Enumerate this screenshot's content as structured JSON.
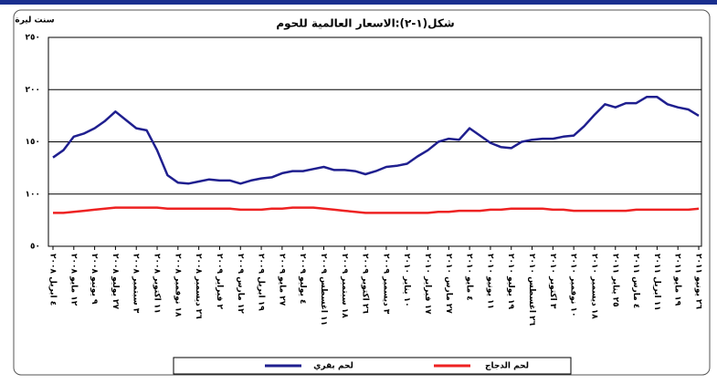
{
  "chart_data": {
    "type": "line",
    "title": "شكل(١-٢):الاسعار العالمية للحوم",
    "ylabel": "سنت ليرة",
    "categories": [
      "٤ ابريل ٢٠٠٨",
      null,
      "١٢ مايو ٢٠٠٨",
      null,
      "٩ يونيو ٢٠٠٨",
      null,
      "٢٧ يوليو ٢٠٠٨",
      null,
      "٣ سبتمبر ٢٠٠٨",
      null,
      "١١ اكتوبر ٢٠٠٨",
      null,
      "١٨ نوفمبر ٢٠٠٨",
      null,
      "٢٦ ديسمبر ٢٠٠٨",
      null,
      "٢ فبراير ٢٠٠٩",
      null,
      "١٢ مارس ٢٠٠٩",
      null,
      "١٩ ابريل ٢٠٠٩",
      null,
      "٢٧ مايو ٢٠٠٩",
      null,
      "٤ يوليو ٢٠٠٩",
      null,
      "١١ اغسطس ٢٠٠٩",
      null,
      "١٨ سبتمبر ٢٠٠٩",
      null,
      "٢٦ اكتوبر ٢٠٠٩",
      null,
      "٣ ديسمبر ٢٠٠٩",
      null,
      "١٠ يناير ٢٠١٠",
      null,
      "١٧ فبراير ٢٠١٠",
      null,
      "٢٧ مارس ٢٠١٠",
      null,
      "٤ مايو ٢٠١٠",
      null,
      "١١ يونيو ٢٠١٠",
      null,
      "١٩ يوليو ٢٠١٠",
      null,
      "٢٦ اغسطس ٢٠١٠",
      null,
      "٣ اكتوبر ٢٠١٠",
      null,
      "١٠ نوفمبر ٢٠١٠",
      null,
      "١٨ ديسمبر ٢٠١٠",
      null,
      "٢٥ يناير ٢٠١١",
      null,
      "٤ مارس ٢٠١١",
      null,
      "١١ ابريل ٢٠١١",
      null,
      "١٩ مايو ٢٠١١",
      null,
      "٢٦ يونيو ٢٠١١"
    ],
    "series": [
      {
        "name": "لحم بقري",
        "color": "#1f1f8f",
        "values": [
          135,
          142,
          155,
          158,
          163,
          170,
          179,
          171,
          163,
          161,
          142,
          118,
          111,
          110,
          112,
          114,
          113,
          113,
          110,
          113,
          115,
          116,
          120,
          122,
          122,
          124,
          126,
          123,
          123,
          122,
          119,
          122,
          126,
          127,
          129,
          136,
          142,
          150,
          153,
          152,
          163,
          156,
          149,
          145,
          144,
          150,
          152,
          153,
          153,
          155,
          156,
          165,
          176,
          186,
          183,
          187,
          187,
          193,
          193,
          186,
          183,
          181,
          175
        ]
      },
      {
        "name": "لحم الدجاج",
        "color": "#ee2222",
        "values": [
          82,
          82,
          83,
          84,
          85,
          86,
          87,
          87,
          87,
          87,
          87,
          86,
          86,
          86,
          86,
          86,
          86,
          86,
          85,
          85,
          85,
          86,
          86,
          87,
          87,
          87,
          86,
          85,
          84,
          83,
          82,
          82,
          82,
          82,
          82,
          82,
          82,
          83,
          83,
          84,
          84,
          84,
          85,
          85,
          86,
          86,
          86,
          86,
          85,
          85,
          84,
          84,
          84,
          84,
          84,
          84,
          85,
          85,
          85,
          85,
          85,
          85,
          86
        ]
      }
    ],
    "ylim": [
      50,
      250
    ],
    "yticks": [
      {
        "value": 50,
        "label": "٥٠"
      },
      {
        "value": 100,
        "label": "١٠٠"
      },
      {
        "value": 150,
        "label": "١٥٠"
      },
      {
        "value": 200,
        "label": "٢٠٠"
      },
      {
        "value": 250,
        "label": "٢٥٠"
      }
    ],
    "grid": true,
    "legend": "bottom"
  }
}
